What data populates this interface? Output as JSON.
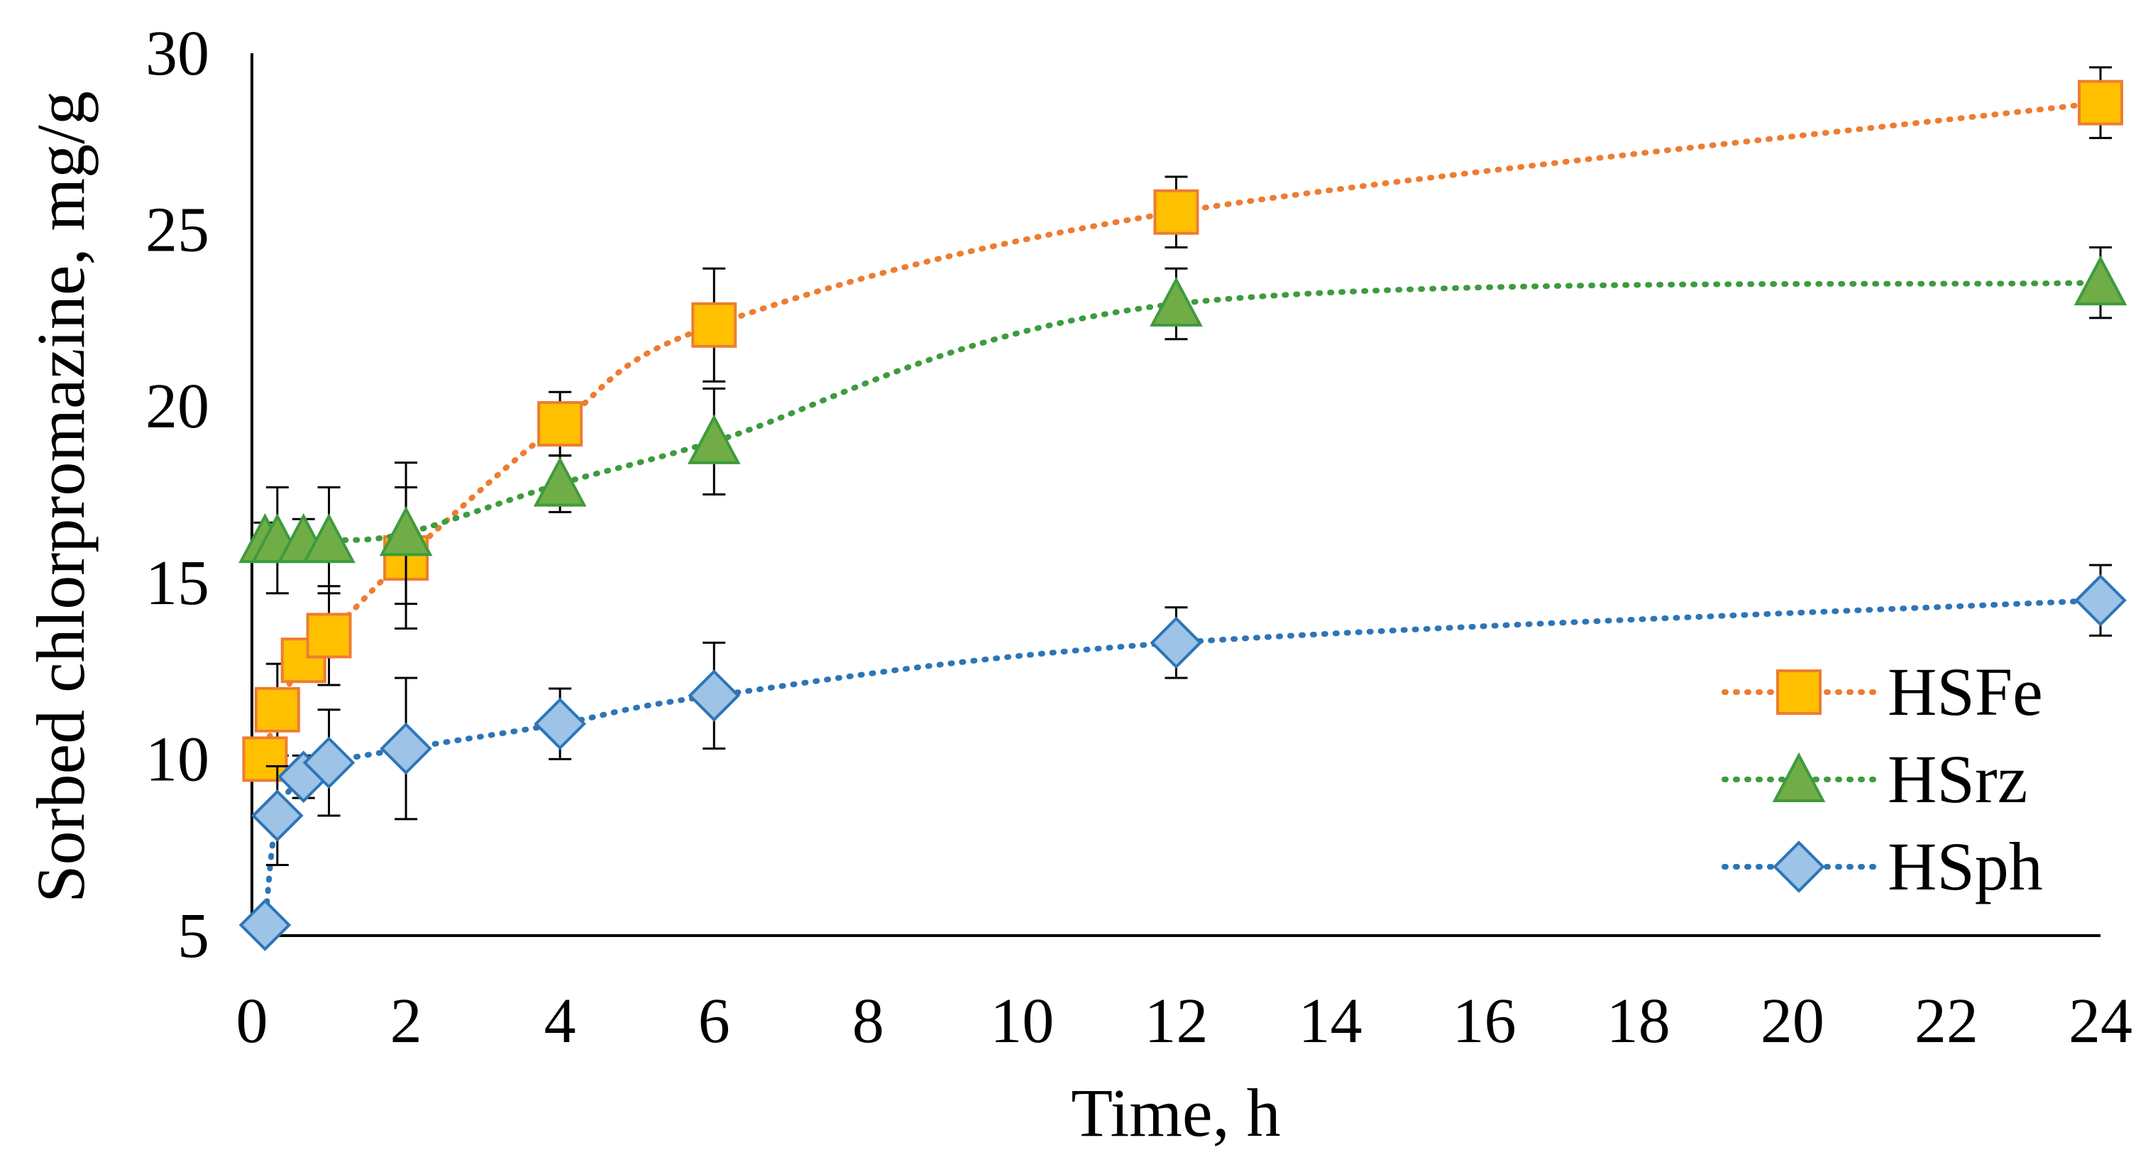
{
  "chart_data": {
    "type": "scatter",
    "title": "",
    "xlabel": "Time, h",
    "ylabel": "Sorbed chlorpromazine, mg/g",
    "xlim": [
      0,
      24
    ],
    "ylim": [
      5,
      30
    ],
    "xticks": [
      0,
      2,
      4,
      6,
      8,
      10,
      12,
      14,
      16,
      18,
      20,
      22,
      24
    ],
    "yticks": [
      5,
      10,
      15,
      20,
      25,
      30
    ],
    "grid": false,
    "legend_position": "bottom-right",
    "series": [
      {
        "name": "HSFe",
        "color": "#ED7D31",
        "marker": "square",
        "marker_fill": "#FFC000",
        "line": "dotted smoothed",
        "x": [
          0.17,
          0.33,
          0.67,
          1,
          2,
          4,
          6,
          12,
          24
        ],
        "y": [
          10.0,
          11.4,
          12.8,
          13.5,
          15.7,
          19.5,
          22.3,
          25.5,
          28.6
        ],
        "err": [
          0.5,
          1.3,
          0.5,
          1.4,
          2.0,
          0.9,
          1.6,
          1.0,
          1.0
        ]
      },
      {
        "name": "HSrz",
        "color": "#3E9B3E",
        "marker": "triangle",
        "marker_fill": "#70AD47",
        "line": "dotted smoothed",
        "x": [
          0.17,
          0.33,
          0.67,
          1,
          2,
          4,
          6,
          12,
          24
        ],
        "y": [
          16.2,
          16.2,
          16.2,
          16.2,
          16.4,
          17.8,
          19.0,
          22.9,
          23.5
        ],
        "err": [
          0.5,
          1.5,
          0.6,
          1.5,
          2.0,
          0.8,
          1.5,
          1.0,
          1.0
        ]
      },
      {
        "name": "HSph",
        "color": "#2E75B6",
        "marker": "diamond",
        "marker_fill": "#9DC3E6",
        "line": "dotted smoothed",
        "x": [
          0.17,
          0.33,
          0.67,
          1,
          2,
          4,
          6,
          12,
          24
        ],
        "y": [
          5.3,
          8.4,
          9.5,
          9.9,
          10.3,
          11.0,
          11.8,
          13.3,
          14.5
        ],
        "err": [
          0.2,
          1.4,
          0.6,
          1.5,
          2.0,
          1.0,
          1.5,
          1.0,
          1.0
        ]
      }
    ]
  }
}
